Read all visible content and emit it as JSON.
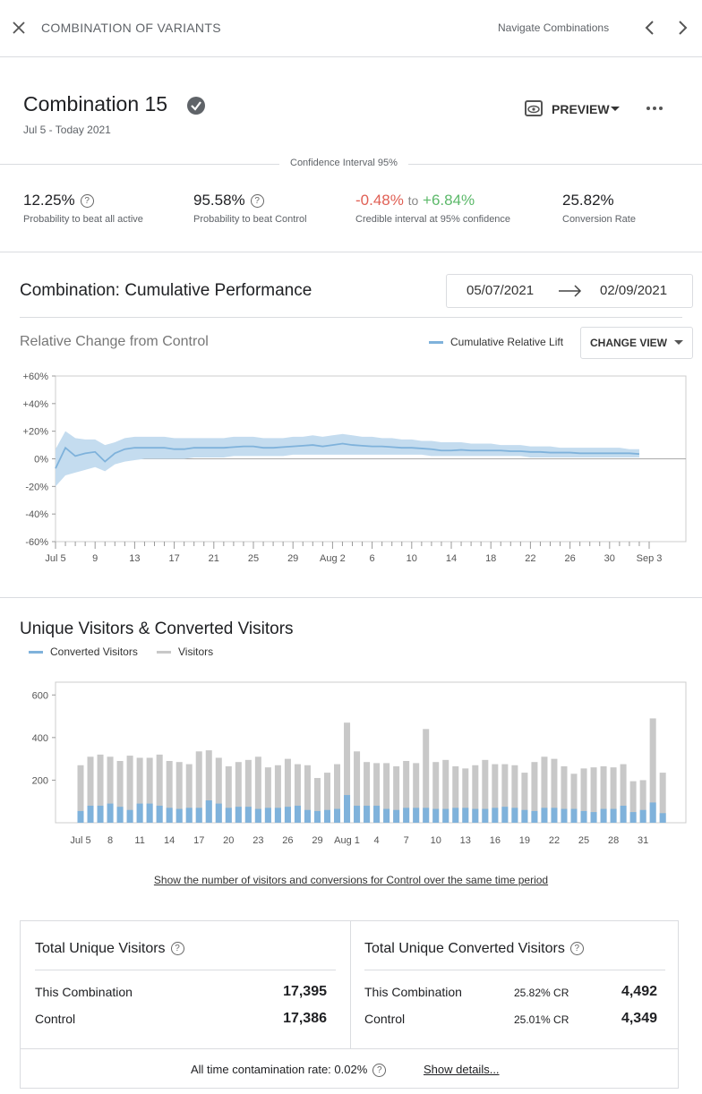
{
  "header": {
    "title": "COMBINATION OF VARIANTS",
    "nav": "Navigate Combinations"
  },
  "combination": {
    "name": "Combination 15",
    "dates": "Jul 5 - Today 2021",
    "preview": "PREVIEW"
  },
  "confidence": "Confidence Interval 95%",
  "metrics": [
    {
      "value": "12.25%",
      "label": "Probability to beat all active"
    },
    {
      "value": "95.58%",
      "label": "Probability to beat Control"
    },
    {
      "low": "-0.48%",
      "joiner": "to",
      "high": "+6.84%",
      "label": "Credible interval at 95% confidence"
    },
    {
      "value": "25.82%",
      "label": "Conversion Rate"
    }
  ],
  "performance": {
    "title": "Combination: Cumulative Performance",
    "date_from": "05/07/2021",
    "date_to": "02/09/2021",
    "change_view": "CHANGE VIEW"
  },
  "chart_data": [
    {
      "type": "line",
      "title": "Relative Change from Control",
      "categories": [
        "Jul 5",
        null,
        null,
        null,
        "9",
        null,
        null,
        null,
        "13",
        null,
        null,
        null,
        "17",
        null,
        null,
        null,
        "21",
        null,
        null,
        null,
        "25",
        null,
        null,
        null,
        "29",
        null,
        null,
        null,
        "Aug 2",
        null,
        null,
        null,
        "6",
        null,
        null,
        null,
        "10",
        null,
        null,
        null,
        "14",
        null,
        null,
        null,
        "18",
        null,
        null,
        null,
        "22",
        null,
        null,
        null,
        "26",
        null,
        null,
        null,
        "30",
        null,
        null,
        null,
        "Sep 3"
      ],
      "series": [
        {
          "name": "Cumulative Relative Lift",
          "color": "#7fb2db",
          "band_color": "#c4dcef",
          "values": [
            -7,
            8,
            2,
            4,
            5,
            -2,
            4,
            7,
            8,
            8,
            8,
            8,
            7,
            7,
            8,
            8,
            8,
            8,
            8.5,
            9,
            9,
            8,
            8,
            8.5,
            9,
            9.5,
            10,
            9,
            10,
            11,
            10,
            9.5,
            9,
            9,
            8.5,
            8,
            8,
            7.5,
            7,
            6,
            6,
            6.5,
            6,
            6,
            6,
            6,
            5.5,
            5.5,
            5,
            5,
            4.5,
            4.5,
            4.5,
            4,
            4,
            4,
            4,
            4,
            4,
            3.5,
            null
          ],
          "lower": [
            -20,
            -12,
            -10,
            -8,
            -6,
            -9,
            -4,
            -2,
            -1,
            0,
            0,
            0,
            0,
            0,
            1,
            1,
            1,
            1,
            2,
            2,
            2,
            2,
            2,
            2,
            3,
            3,
            3,
            3,
            3,
            3,
            3,
            3,
            3,
            3,
            3,
            3,
            3,
            3,
            2,
            2,
            2,
            2,
            2,
            2,
            2,
            2,
            2,
            2,
            1,
            1,
            1,
            1,
            1,
            1,
            1,
            1,
            1,
            1,
            1,
            1,
            null
          ],
          "upper": [
            7,
            20,
            15,
            14,
            14,
            10,
            12,
            15,
            16,
            16,
            16,
            16,
            15,
            15,
            15,
            15,
            15,
            15,
            16,
            16,
            16,
            15,
            15,
            15,
            16,
            16,
            17,
            16,
            17,
            18,
            17,
            16,
            16,
            15,
            15,
            14,
            14,
            13,
            13,
            12,
            12,
            12,
            11,
            11,
            11,
            10,
            10,
            10,
            9,
            9,
            9,
            8,
            8,
            8,
            8,
            8,
            8,
            8,
            7,
            7,
            null
          ]
        }
      ],
      "ylim": [
        -60,
        60
      ],
      "yticks": [
        {
          "value": -60,
          "label": "-60%"
        },
        {
          "value": -40,
          "label": "-40%"
        },
        {
          "value": -20,
          "label": "-20%"
        },
        {
          "value": 0,
          "label": "0%"
        },
        {
          "value": 20,
          "label": "+20%"
        },
        {
          "value": 40,
          "label": "+40%"
        },
        {
          "value": 60,
          "label": "+60%"
        }
      ],
      "grid": false,
      "legend": "top-right"
    },
    {
      "type": "bar",
      "title": "Unique Visitors & Converted Visitors",
      "categories": [
        "Jul 5",
        null,
        null,
        "8",
        null,
        null,
        "11",
        null,
        null,
        "14",
        null,
        null,
        "17",
        null,
        null,
        "20",
        null,
        null,
        "23",
        null,
        null,
        "26",
        null,
        null,
        "29",
        null,
        null,
        "Aug 1",
        null,
        null,
        "4",
        null,
        null,
        "7",
        null,
        null,
        "10",
        null,
        null,
        "13",
        null,
        null,
        "16",
        null,
        null,
        "19",
        null,
        null,
        "22",
        null,
        null,
        "25",
        null,
        null,
        "28",
        null,
        null,
        "31",
        null,
        null
      ],
      "series": [
        {
          "name": "Converted Visitors",
          "color": "#7fb2db",
          "values": [
            55,
            80,
            80,
            90,
            75,
            60,
            90,
            90,
            80,
            70,
            65,
            70,
            70,
            105,
            90,
            70,
            75,
            75,
            65,
            70,
            70,
            75,
            80,
            60,
            55,
            60,
            65,
            130,
            80,
            80,
            80,
            65,
            60,
            70,
            70,
            70,
            65,
            65,
            70,
            70,
            65,
            65,
            70,
            75,
            70,
            60,
            55,
            70,
            70,
            65,
            65,
            55,
            50,
            65,
            65,
            80,
            50,
            60,
            95,
            45
          ]
        },
        {
          "name": "Visitors",
          "color": "#c8c8c8",
          "values": [
            270,
            310,
            320,
            310,
            290,
            315,
            305,
            305,
            320,
            290,
            285,
            275,
            335,
            340,
            305,
            265,
            285,
            295,
            310,
            260,
            270,
            300,
            275,
            270,
            210,
            235,
            275,
            470,
            335,
            285,
            280,
            280,
            265,
            290,
            280,
            440,
            285,
            295,
            265,
            255,
            270,
            295,
            275,
            275,
            270,
            235,
            285,
            310,
            300,
            265,
            230,
            255,
            260,
            265,
            260,
            275,
            195,
            200,
            490,
            235
          ]
        }
      ],
      "ylim": [
        0,
        660
      ],
      "yticks": [
        200,
        400,
        600
      ],
      "grid": false,
      "legend": "top-left"
    }
  ],
  "control_link": "Show the number of visitors and conversions for Control over the same time period",
  "totals": {
    "visitors": {
      "title": "Total Unique Visitors",
      "rows": [
        [
          "This Combination",
          "17,395"
        ],
        [
          "Control",
          "17,386"
        ]
      ]
    },
    "converted": {
      "title": "Total Unique Converted Visitors",
      "rows": [
        [
          "This Combination",
          "25.82% CR",
          "4,492"
        ],
        [
          "Control",
          "25.01% CR",
          "4,349"
        ]
      ]
    }
  },
  "footer": {
    "contamination": "All time contamination rate: 0.02%",
    "details": "Show details..."
  }
}
